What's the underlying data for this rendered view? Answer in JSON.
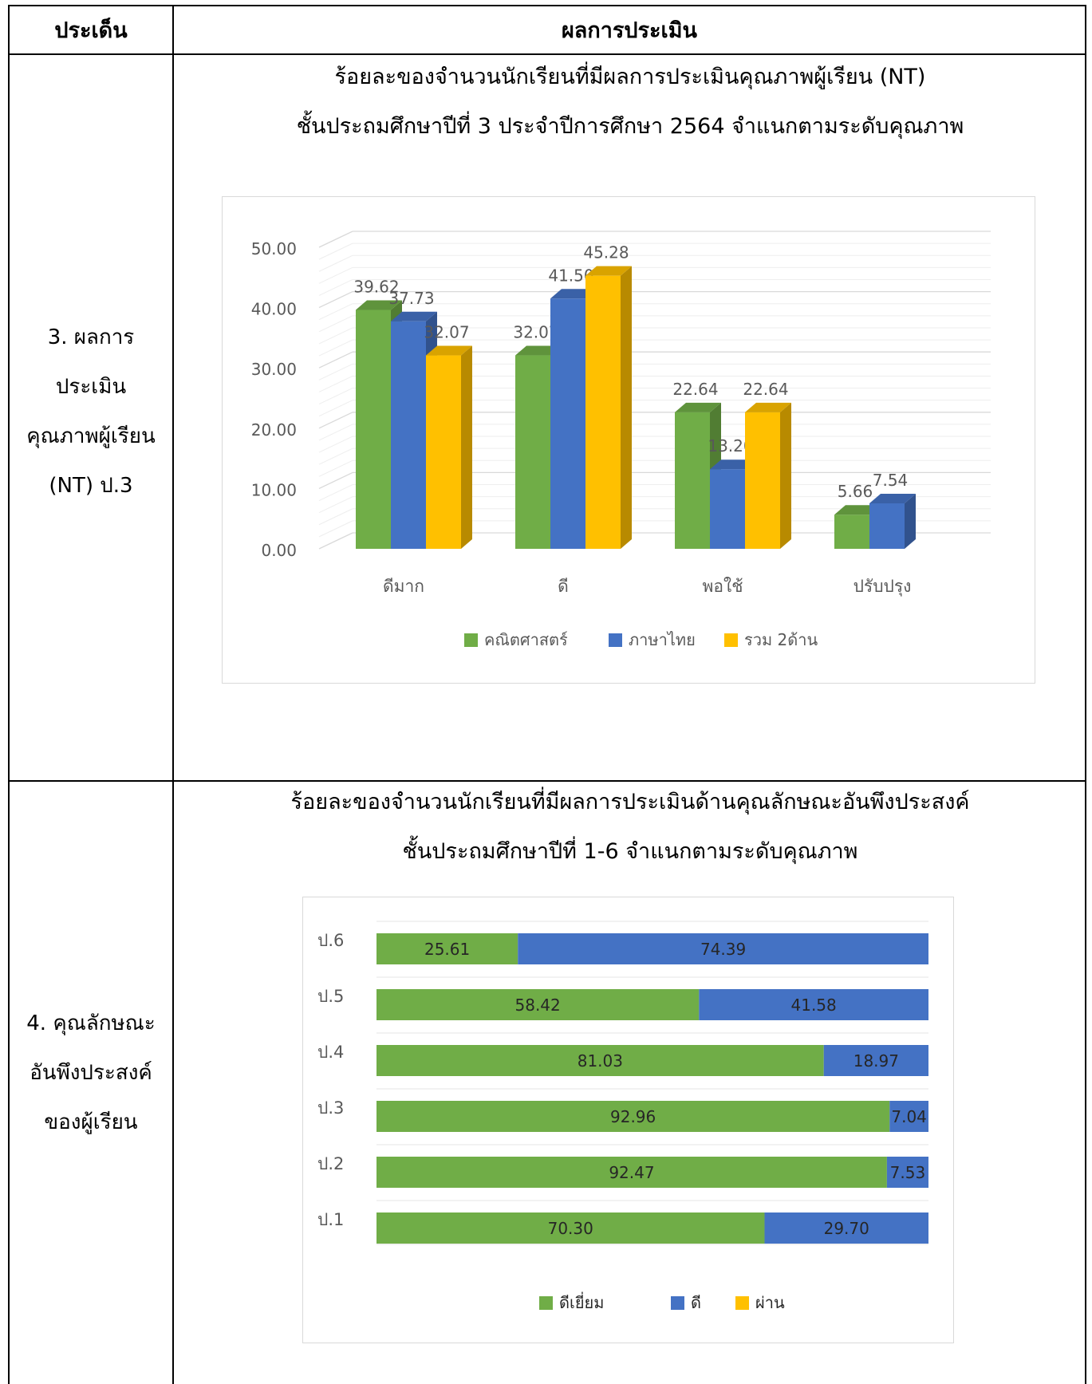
{
  "table": {
    "col1_header": "ประเด็น",
    "col2_header": "ผลการประเมิน"
  },
  "rows": [
    {
      "topic_lines": [
        "3. ผลการ",
        "ประเมิน",
        "คุณภาพผู้เรียน",
        "(NT) ป.3"
      ],
      "chart_title_lines": [
        "ร้อยละของจำนวนนักเรียนที่มีผลการประเมินคุณภาพผู้เรียน (NT)",
        "ชั้นประถมศึกษาปีที่ 3  ประจำปีการศึกษา 2564 จำแนกตามระดับคุณภาพ"
      ]
    },
    {
      "topic_lines": [
        "4. คุณลักษณะ",
        "อันพึงประสงค์",
        "ของผู้เรียน"
      ],
      "chart_title_lines": [
        "ร้อยละของจำนวนนักเรียนที่มีผลการประเมินด้านคุณลักษณะอันพึงประสงค์",
        "ชั้นประถมศึกษาปีที่ 1-6 จำแนกตามระดับคุณภาพ"
      ]
    }
  ],
  "chart_data": [
    {
      "type": "bar",
      "style": "3d-clustered-column",
      "categories": [
        "ดีมาก",
        "ดี",
        "พอใช้",
        "ปรับปรุง"
      ],
      "series": [
        {
          "name": "คณิตศาสตร์",
          "color": "#70AD47",
          "values": [
            39.62,
            32.07,
            22.64,
            5.66
          ]
        },
        {
          "name": "ภาษาไทย",
          "color": "#4472C4",
          "values": [
            37.73,
            41.5,
            13.2,
            7.54
          ]
        },
        {
          "name": "รวม 2ด้าน",
          "color": "#FFC000",
          "values": [
            32.07,
            45.28,
            22.64,
            null
          ]
        }
      ],
      "value_labels": [
        [
          "39.62",
          "32.07",
          "22.64",
          "5.66"
        ],
        [
          "37.73",
          "41.50",
          "13.20",
          "7.54"
        ],
        [
          "32.07",
          "45.28",
          "22.64",
          ""
        ]
      ],
      "yticks": [
        "0.00",
        "10.00",
        "20.00",
        "30.00",
        "40.00",
        "50.00"
      ],
      "ylim": [
        0,
        50
      ],
      "grid": true,
      "legend": "bottom"
    },
    {
      "type": "bar",
      "style": "100%-stacked-horizontal",
      "categories": [
        "ป.6",
        "ป.5",
        "ป.4",
        "ป.3",
        "ป.2",
        "ป.1"
      ],
      "series": [
        {
          "name": "ดีเยี่ยม",
          "color": "#70AD47",
          "values": [
            25.61,
            58.42,
            81.03,
            92.96,
            92.47,
            70.3
          ]
        },
        {
          "name": "ดี",
          "color": "#4472C4",
          "values": [
            74.39,
            41.58,
            18.97,
            7.04,
            7.53,
            29.7
          ]
        },
        {
          "name": "ผ่าน",
          "color": "#FFC000",
          "values": [
            0,
            0,
            0,
            0,
            0,
            0
          ]
        }
      ],
      "value_labels": [
        [
          "25.61",
          "58.42",
          "81.03",
          "92.96",
          "92.47",
          "70.30"
        ],
        [
          "74.39",
          "41.58",
          "18.97",
          "7.04",
          "7.53",
          "29.70"
        ]
      ],
      "xlim": [
        0,
        100
      ],
      "grid": true,
      "legend": "bottom"
    }
  ]
}
